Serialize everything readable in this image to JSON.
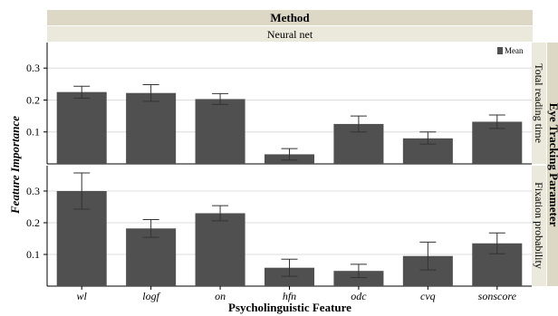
{
  "header": {
    "top_label": "Method",
    "sub_label": "Neural net"
  },
  "right_header": {
    "outer_label": "Eye Tracking Parameter"
  },
  "legend": {
    "label": "Mean"
  },
  "colors": {
    "bar": "#505050",
    "header_bg": "#ddd8c6",
    "subheader_bg": "#ebe8dc",
    "gridline": "#dcdcdc"
  },
  "chart_data": [
    {
      "type": "bar",
      "panel": "Total reading time",
      "categories": [
        "wl",
        "logf",
        "on",
        "hfn",
        "odc",
        "cvq",
        "sonscore"
      ],
      "series": [
        {
          "name": "Mean",
          "values": [
            0.225,
            0.222,
            0.203,
            0.03,
            0.125,
            0.08,
            0.132
          ],
          "error_low": [
            0.206,
            0.196,
            0.186,
            0.012,
            0.1,
            0.062,
            0.111
          ],
          "error_high": [
            0.243,
            0.248,
            0.22,
            0.048,
            0.15,
            0.1,
            0.153
          ]
        }
      ],
      "xlabel": "Psycholinguistic Feature",
      "ylabel": "Feature Importance",
      "yticks": [
        0.1,
        0.2,
        0.3
      ],
      "ylim": [
        0,
        0.38
      ]
    },
    {
      "type": "bar",
      "panel": "Fixation probability",
      "categories": [
        "wl",
        "logf",
        "on",
        "hfn",
        "odc",
        "cvq",
        "sonscore"
      ],
      "series": [
        {
          "name": "Mean",
          "values": [
            0.3,
            0.182,
            0.23,
            0.058,
            0.048,
            0.095,
            0.135
          ],
          "error_low": [
            0.243,
            0.154,
            0.206,
            0.031,
            0.027,
            0.051,
            0.102
          ],
          "error_high": [
            0.357,
            0.21,
            0.254,
            0.085,
            0.069,
            0.139,
            0.168
          ]
        }
      ],
      "xlabel": "Psycholinguistic Feature",
      "ylabel": "Feature Importance",
      "yticks": [
        0.1,
        0.2,
        0.3
      ],
      "ylim": [
        0,
        0.38
      ]
    }
  ]
}
